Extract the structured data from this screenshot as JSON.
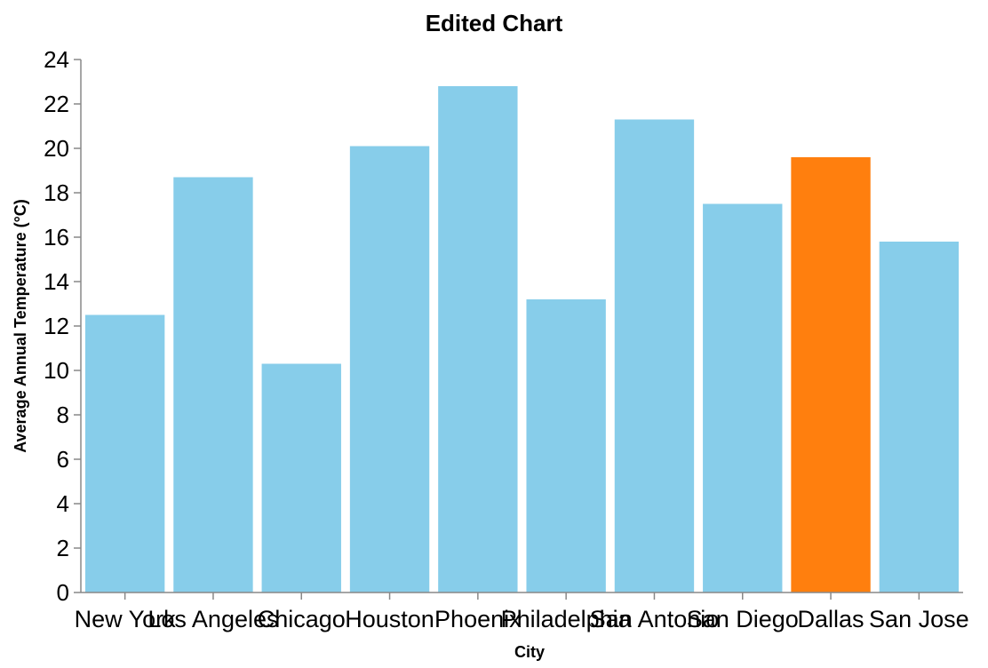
{
  "chart_data": {
    "type": "bar",
    "title": "Edited Chart",
    "xlabel": "City",
    "ylabel": "Average Annual Temperature (°C)",
    "ylim": [
      0,
      24
    ],
    "yticks": [
      0,
      2,
      4,
      6,
      8,
      10,
      12,
      14,
      16,
      18,
      20,
      22,
      24
    ],
    "grid": false,
    "categories": [
      "New York",
      "Los Angeles",
      "Chicago",
      "Houston",
      "Phoenix",
      "Philadelphia",
      "San Antonio",
      "San Diego",
      "Dallas",
      "San Jose"
    ],
    "values": [
      12.5,
      18.7,
      10.3,
      20.1,
      22.8,
      13.2,
      21.3,
      17.5,
      19.6,
      15.8
    ],
    "highlight": "Dallas",
    "colors": {
      "default": "#87CDEA",
      "highlight": "#FF7F0E",
      "axis": "#888888",
      "text": "#000000"
    }
  }
}
